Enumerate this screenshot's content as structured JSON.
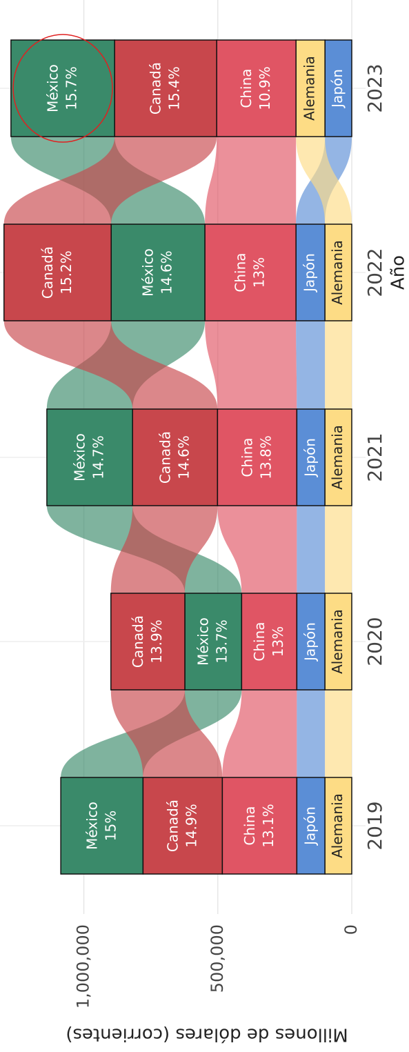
{
  "chart_data": {
    "type": "alluvial",
    "x_label": "Año",
    "y_label": "Millones de dólares (corrientes)",
    "categories": [
      "2019",
      "2020",
      "2021",
      "2022",
      "2023"
    ],
    "series": [
      {
        "name": "México",
        "color": "#3a8a6a",
        "values": [
          307000,
          212000,
          320000,
          350000,
          387000
        ],
        "shares": [
          "15%",
          "13.7%",
          "14.7%",
          "14.6%",
          "15.7%"
        ]
      },
      {
        "name": "Canadá",
        "color": "#c8474c",
        "values": [
          296000,
          276000,
          317000,
          400000,
          381000
        ],
        "shares": [
          "14.9%",
          "13.9%",
          "14.6%",
          "15.2%",
          "15.4%"
        ]
      },
      {
        "name": "China",
        "color": "#e05564",
        "values": [
          278000,
          206000,
          296000,
          340000,
          296000
        ],
        "shares": [
          "13.1%",
          "13%",
          "13.8%",
          "13%",
          "10.9%"
        ]
      },
      {
        "name": "Japón",
        "color": "#5b8ed6",
        "values": [
          105000,
          105000,
          105000,
          108000,
          100000
        ]
      },
      {
        "name": "Alemania",
        "color": "#fddc85",
        "values": [
          100000,
          100000,
          100000,
          100000,
          108000
        ]
      }
    ],
    "ylim": [
      0,
      1300000
    ],
    "yticks": [
      0,
      {
        "value": 500000,
        "label": "500,000"
      },
      {
        "value": 1000000,
        "label": "1,000,000"
      }
    ],
    "grid": true
  }
}
